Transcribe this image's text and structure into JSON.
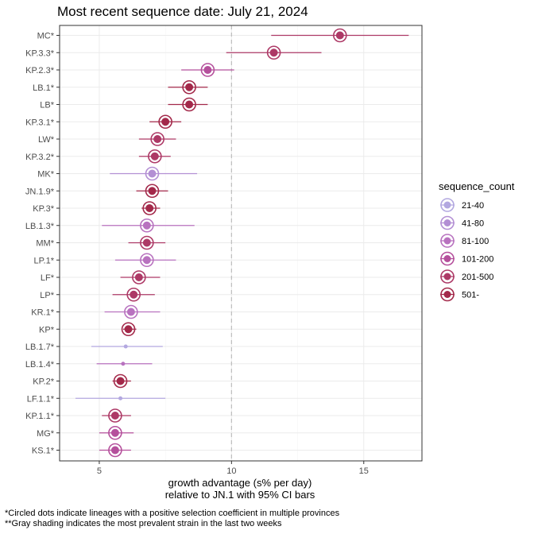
{
  "chart_data": {
    "type": "scatter",
    "title": "Most recent sequence date: July 21, 2024",
    "xlabel_line1": "growth advantage (s% per day)",
    "xlabel_line2": "relative to  JN.1  with 95% CI bars",
    "xlim": [
      3.5,
      17.2
    ],
    "xticks": [
      5,
      10,
      15
    ],
    "reference_line_x": 10,
    "grid": true,
    "legend_position": "right",
    "legend_title": "sequence_count",
    "legend": [
      {
        "label": "21-40",
        "color": "#b3a8e0"
      },
      {
        "label": "41-80",
        "color": "#b38fd4"
      },
      {
        "label": "81-100",
        "color": "#b872bf"
      },
      {
        "label": "101-200",
        "color": "#b5509c"
      },
      {
        "label": "201-500",
        "color": "#ad3966"
      },
      {
        "label": "501-",
        "color": "#a3294a"
      }
    ],
    "points": [
      {
        "label": "MC*",
        "value": 14.1,
        "lo": 11.5,
        "hi": 16.7,
        "count_class": 4,
        "circled": true
      },
      {
        "label": "KP.3.3*",
        "value": 11.6,
        "lo": 9.8,
        "hi": 13.4,
        "count_class": 4,
        "circled": true
      },
      {
        "label": "KP.2.3*",
        "value": 9.1,
        "lo": 8.1,
        "hi": 10.1,
        "count_class": 3,
        "circled": true
      },
      {
        "label": "LB.1*",
        "value": 8.4,
        "lo": 7.6,
        "hi": 9.1,
        "count_class": 5,
        "circled": true
      },
      {
        "label": "LB*",
        "value": 8.4,
        "lo": 7.6,
        "hi": 9.1,
        "count_class": 5,
        "circled": true
      },
      {
        "label": "KP.3.1*",
        "value": 7.5,
        "lo": 6.9,
        "hi": 8.1,
        "count_class": 5,
        "circled": true
      },
      {
        "label": "LW*",
        "value": 7.2,
        "lo": 6.5,
        "hi": 7.9,
        "count_class": 4,
        "circled": true
      },
      {
        "label": "KP.3.2*",
        "value": 7.1,
        "lo": 6.5,
        "hi": 7.7,
        "count_class": 4,
        "circled": true
      },
      {
        "label": "MK*",
        "value": 7.0,
        "lo": 5.4,
        "hi": 8.7,
        "count_class": 1,
        "circled": true
      },
      {
        "label": "JN.1.9*",
        "value": 7.0,
        "lo": 6.4,
        "hi": 7.6,
        "count_class": 5,
        "circled": true
      },
      {
        "label": "KP.3*",
        "value": 6.9,
        "lo": 6.6,
        "hi": 7.3,
        "count_class": 5,
        "circled": true
      },
      {
        "label": "LB.1.3*",
        "value": 6.8,
        "lo": 5.1,
        "hi": 8.6,
        "count_class": 2,
        "circled": true
      },
      {
        "label": "MM*",
        "value": 6.8,
        "lo": 6.1,
        "hi": 7.5,
        "count_class": 4,
        "circled": true
      },
      {
        "label": "LP.1*",
        "value": 6.8,
        "lo": 5.6,
        "hi": 7.9,
        "count_class": 2,
        "circled": true
      },
      {
        "label": "LF*",
        "value": 6.5,
        "lo": 5.8,
        "hi": 7.3,
        "count_class": 4,
        "circled": true
      },
      {
        "label": "LP*",
        "value": 6.3,
        "lo": 5.5,
        "hi": 7.1,
        "count_class": 4,
        "circled": true
      },
      {
        "label": "KR.1*",
        "value": 6.2,
        "lo": 5.2,
        "hi": 7.3,
        "count_class": 2,
        "circled": true
      },
      {
        "label": "KP*",
        "value": 6.1,
        "lo": 5.9,
        "hi": 6.4,
        "count_class": 5,
        "circled": true
      },
      {
        "label": "LB.1.7*",
        "value": 6.0,
        "lo": 4.7,
        "hi": 7.4,
        "count_class": 0,
        "circled": false
      },
      {
        "label": "LB.1.4*",
        "value": 5.9,
        "lo": 4.9,
        "hi": 7.0,
        "count_class": 2,
        "circled": false
      },
      {
        "label": "KP.2*",
        "value": 5.8,
        "lo": 5.5,
        "hi": 6.2,
        "count_class": 5,
        "circled": true
      },
      {
        "label": "LF.1.1*",
        "value": 5.8,
        "lo": 4.1,
        "hi": 7.5,
        "count_class": 0,
        "circled": false
      },
      {
        "label": "KP.1.1*",
        "value": 5.6,
        "lo": 5.1,
        "hi": 6.2,
        "count_class": 4,
        "circled": true
      },
      {
        "label": "MG*",
        "value": 5.6,
        "lo": 5.0,
        "hi": 6.3,
        "count_class": 3,
        "circled": true
      },
      {
        "label": "KS.1*",
        "value": 5.6,
        "lo": 5.0,
        "hi": 6.2,
        "count_class": 3,
        "circled": true
      }
    ],
    "footnotes": [
      "*Circled dots indicate lineages with a positive selection coefficient in multiple provinces",
      "**Gray shading indicates the most prevalent strain in the last two weeks"
    ]
  }
}
